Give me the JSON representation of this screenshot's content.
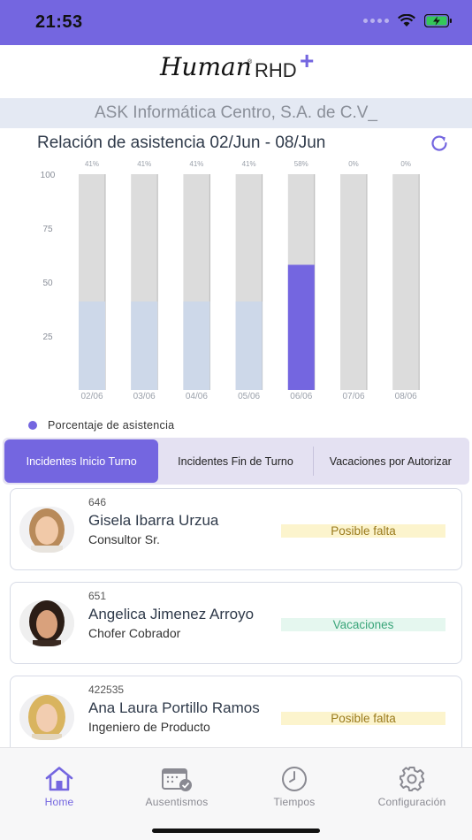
{
  "status": {
    "time": "21:53"
  },
  "brand": {
    "script": "Human",
    "reg": "®",
    "suffix": "RHD",
    "plus": "+"
  },
  "company": "ASK Informática Centro, S.A. de C.V_",
  "chart_title": "Relación de asistencia 02/Jun - 08/Jun",
  "chart_data": {
    "type": "bar",
    "categories": [
      "02/06",
      "03/06",
      "04/06",
      "05/06",
      "06/06",
      "07/06",
      "08/06"
    ],
    "series": [
      {
        "name": "Porcentaje de asistencia",
        "values": [
          41,
          41,
          41,
          41,
          58,
          0,
          0
        ]
      }
    ],
    "data_labels": [
      "41%",
      "41%",
      "41%",
      "41%",
      "58%",
      "0%",
      "0%"
    ],
    "yticks": [
      25,
      50,
      75,
      100
    ],
    "ylim": [
      0,
      100
    ],
    "highlight_index": 4,
    "colors": {
      "background_bar": "#dcdcdc",
      "value_bar": "#cdd8e9",
      "highlight_bar": "#7466e0"
    }
  },
  "legend": {
    "label": "Porcentaje de asistencia"
  },
  "segments": [
    {
      "label": "Incidentes Inicio Turno",
      "active": true
    },
    {
      "label": "Incidentes Fin de Turno",
      "active": false
    },
    {
      "label": "Vacaciones por Autorizar",
      "active": false
    }
  ],
  "employees": [
    {
      "id": "646",
      "name": "Gisela Ibarra Urzua",
      "role": "Consultor Sr.",
      "status": "Posible falta",
      "status_type": "warn"
    },
    {
      "id": "651",
      "name": "Angelica Jimenez Arroyo",
      "role": "Chofer Cobrador",
      "status": "Vacaciones",
      "status_type": "ok"
    },
    {
      "id": "422535",
      "name": "Ana Laura Portillo Ramos",
      "role": "Ingeniero de Producto",
      "status": "Posible falta",
      "status_type": "warn"
    }
  ],
  "tabs": [
    {
      "label": "Home",
      "icon": "home-icon",
      "active": true
    },
    {
      "label": "Ausentismos",
      "icon": "calendar-check-icon",
      "active": false
    },
    {
      "label": "Tiempos",
      "icon": "clock-icon",
      "active": false
    },
    {
      "label": "Configuración",
      "icon": "gear-icon",
      "active": false
    }
  ],
  "colors": {
    "accent": "#7466e0",
    "warn_bg": "#fcf4cd",
    "ok_bg": "#e5f7ef"
  }
}
